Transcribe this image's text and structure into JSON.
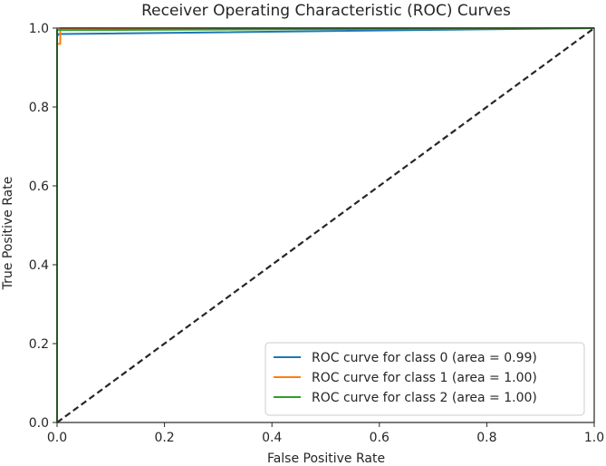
{
  "chart_data": {
    "type": "line",
    "title": "Receiver Operating Characteristic (ROC) Curves",
    "xlabel": "False Positive Rate",
    "ylabel": "True Positive Rate",
    "xlim": [
      0.0,
      1.0
    ],
    "ylim": [
      0.0,
      1.0
    ],
    "x_ticks": [
      0.0,
      0.2,
      0.4,
      0.6,
      0.8,
      1.0
    ],
    "y_ticks": [
      0.0,
      0.2,
      0.4,
      0.6,
      0.8,
      1.0
    ],
    "x_tick_labels": [
      "0.0",
      "0.2",
      "0.4",
      "0.6",
      "0.8",
      "1.0"
    ],
    "y_tick_labels": [
      "0.0",
      "0.2",
      "0.4",
      "0.6",
      "0.8",
      "1.0"
    ],
    "grid": false,
    "legend_position": "lower-right",
    "series": [
      {
        "name": "ROC curve for class 0 (area = 0.99)",
        "color": "#1f77b4",
        "x": [
          0.0,
          0.0,
          0.003,
          0.01,
          1.0
        ],
        "y": [
          0.0,
          0.98,
          0.985,
          0.985,
          1.0
        ]
      },
      {
        "name": "ROC curve for class 1 (area = 1.00)",
        "color": "#ff7f0e",
        "x": [
          0.0,
          0.0,
          0.006,
          0.006,
          1.0
        ],
        "y": [
          0.0,
          0.96,
          0.96,
          1.0,
          1.0
        ]
      },
      {
        "name": "ROC curve for class 2 (area = 1.00)",
        "color": "#2ca02c",
        "x": [
          0.0,
          0.0,
          0.003,
          1.0
        ],
        "y": [
          0.0,
          0.995,
          0.995,
          1.0
        ]
      }
    ],
    "reference_line": {
      "x": [
        0.0,
        1.0
      ],
      "y": [
        0.0,
        1.0
      ],
      "color": "#262626",
      "style": "dashed"
    }
  }
}
